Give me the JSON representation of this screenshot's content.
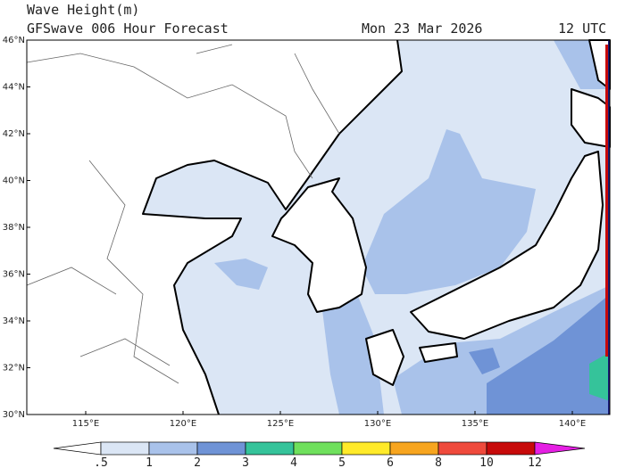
{
  "header": {
    "title": "Wave Height(m)",
    "subtitle": "GFSwave 006 Hour Forecast",
    "date": "Mon 23 Mar 2026",
    "time": "12 UTC"
  },
  "map": {
    "lat_labels": [
      "46°N",
      "44°N",
      "42°N",
      "40°N",
      "38°N",
      "36°N",
      "34°N",
      "32°N",
      "30°N"
    ],
    "lon_labels": [
      "115°E",
      "120°E",
      "125°E",
      "130°E",
      "135°E",
      "140°E"
    ]
  },
  "colorbar": {
    "labels": [
      ".5",
      "1",
      "2",
      "3",
      "4",
      "5",
      "6",
      "8",
      "10",
      "12"
    ],
    "colors": [
      "#ffffff",
      "#dbe6f5",
      "#a9c2ea",
      "#6f93d6",
      "#35c39a",
      "#6fe05c",
      "#ffea2a",
      "#f7a51f",
      "#ef4a3c",
      "#c70a0a",
      "#e51fe3"
    ]
  }
}
